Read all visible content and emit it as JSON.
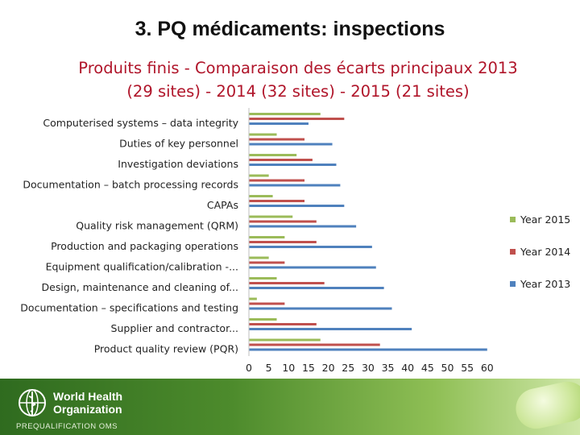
{
  "slide_title": "3. PQ médicaments: inspections",
  "chart_title_lines": [
    "Produits finis - Comparaison des écarts principaux 2013",
    "(29 sites) - 2014 (32 sites) - 2015 (21 sites)"
  ],
  "chart_data": {
    "type": "bar",
    "orientation": "horizontal",
    "categories": [
      "Computerised systems – data integrity",
      "Duties of key personnel",
      "Investigation deviations",
      "Documentation – batch processing records",
      "CAPAs",
      "Quality risk management (QRM)",
      "Production and packaging operations",
      "Equipment qualification/calibration -...",
      "Design, maintenance and cleaning of...",
      "Documentation – specifications and testing",
      "Supplier and contractor...",
      "Product quality review (PQR)"
    ],
    "series": [
      {
        "name": "Year 2015",
        "color": "#9bbb59",
        "values": [
          18,
          7,
          12,
          5,
          6,
          11,
          9,
          5,
          7,
          2,
          7,
          18
        ]
      },
      {
        "name": "Year 2014",
        "color": "#c0504d",
        "values": [
          24,
          14,
          16,
          14,
          14,
          17,
          17,
          9,
          19,
          9,
          17,
          33
        ]
      },
      {
        "name": "Year 2013",
        "color": "#4f81bd",
        "values": [
          15,
          21,
          22,
          23,
          24,
          27,
          31,
          32,
          34,
          36,
          41,
          60
        ]
      }
    ],
    "x_ticks": [
      0,
      5,
      10,
      15,
      20,
      25,
      30,
      35,
      40,
      45,
      50,
      55,
      60
    ],
    "xlim": [
      0,
      60
    ],
    "grid": false,
    "legend_position": "right"
  },
  "footer": {
    "org_name": "World Health\nOrganization",
    "program": "PREQUALIFICATION OMS"
  }
}
